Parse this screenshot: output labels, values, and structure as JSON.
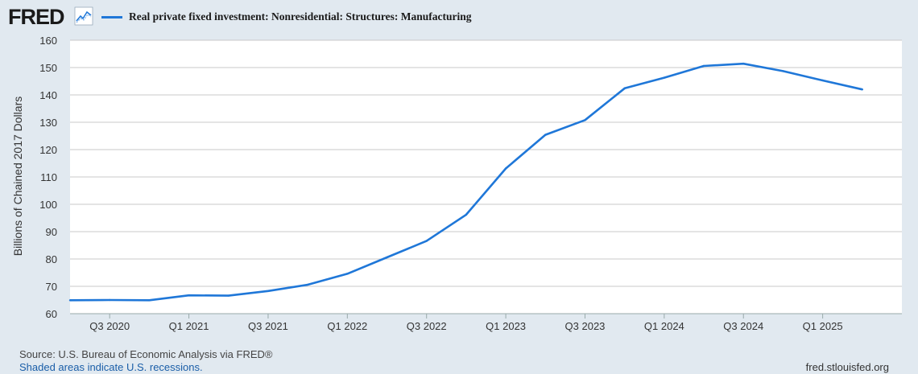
{
  "header": {
    "logo_text": "FRED",
    "logo_icon": "trend-line-icon",
    "legend_label": "Real private fixed investment: Nonresidential: Structures: Manufacturing"
  },
  "footer": {
    "source": "Source: U.S. Bureau of Economic Analysis via FRED®",
    "recession_note": "Shaded areas indicate U.S. recessions.",
    "site": "fred.stlouisfed.org"
  },
  "colors": {
    "line": "#1f77d8",
    "plot_bg": "#ffffff",
    "page_bg": "#e1e9f0",
    "grid": "#c8c8c8"
  },
  "chart_data": {
    "type": "line",
    "title": "Real private fixed investment: Nonresidential: Structures: Manufacturing",
    "xlabel": "",
    "ylabel": "Billions of Chained 2017 Dollars",
    "ylim": [
      60,
      160
    ],
    "yticks": [
      60,
      70,
      80,
      90,
      100,
      110,
      120,
      130,
      140,
      150,
      160
    ],
    "xlim": [
      2020.25,
      2025.5
    ],
    "xticks": [
      {
        "label": "Q3 2020",
        "x": 2020.5
      },
      {
        "label": "Q1 2021",
        "x": 2021.0
      },
      {
        "label": "Q3 2021",
        "x": 2021.5
      },
      {
        "label": "Q1 2022",
        "x": 2022.0
      },
      {
        "label": "Q3 2022",
        "x": 2022.5
      },
      {
        "label": "Q1 2023",
        "x": 2023.0
      },
      {
        "label": "Q3 2023",
        "x": 2023.5
      },
      {
        "label": "Q1 2024",
        "x": 2024.0
      },
      {
        "label": "Q3 2024",
        "x": 2024.5
      },
      {
        "label": "Q1 2025",
        "x": 2025.0
      }
    ],
    "series": [
      {
        "name": "Real private fixed investment: Nonresidential: Structures: Manufacturing",
        "x": [
          2020.25,
          2020.5,
          2020.75,
          2021.0,
          2021.25,
          2021.5,
          2021.75,
          2022.0,
          2022.25,
          2022.5,
          2022.75,
          2023.0,
          2023.25,
          2023.5,
          2023.75,
          2024.0,
          2024.25,
          2024.5,
          2024.75,
          2025.0,
          2025.25
        ],
        "values": [
          64.9,
          65.0,
          64.9,
          66.7,
          66.6,
          68.3,
          70.6,
          74.6,
          80.6,
          86.6,
          96.2,
          113.1,
          125.4,
          130.8,
          142.4,
          146.3,
          150.6,
          151.4,
          148.7,
          145.3,
          142.0
        ]
      }
    ]
  }
}
